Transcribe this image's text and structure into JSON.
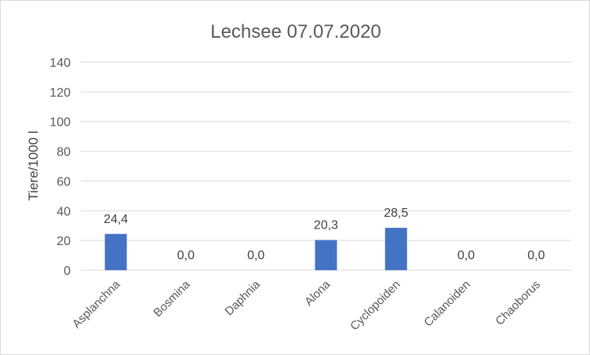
{
  "chart_data": {
    "type": "bar",
    "title": "Lechsee 07.07.2020",
    "xlabel": "",
    "ylabel": "Tiere/1000 l",
    "ylim": [
      0,
      140
    ],
    "yticks": [
      0,
      20,
      40,
      60,
      80,
      100,
      120,
      140
    ],
    "grid": true,
    "legend": "none",
    "bar_color": "#4472c4",
    "categories": [
      "Asplanchna",
      "Bosmina",
      "Daphnia",
      "Alona",
      "Cyclopoiden",
      "Calanoiden",
      "Chaoborus"
    ],
    "values": [
      24.4,
      0.0,
      0.0,
      20.3,
      28.5,
      0.0,
      0.0
    ],
    "data_labels": [
      "24,4",
      "0,0",
      "0,0",
      "20,3",
      "28,5",
      "0,0",
      "0,0"
    ]
  }
}
